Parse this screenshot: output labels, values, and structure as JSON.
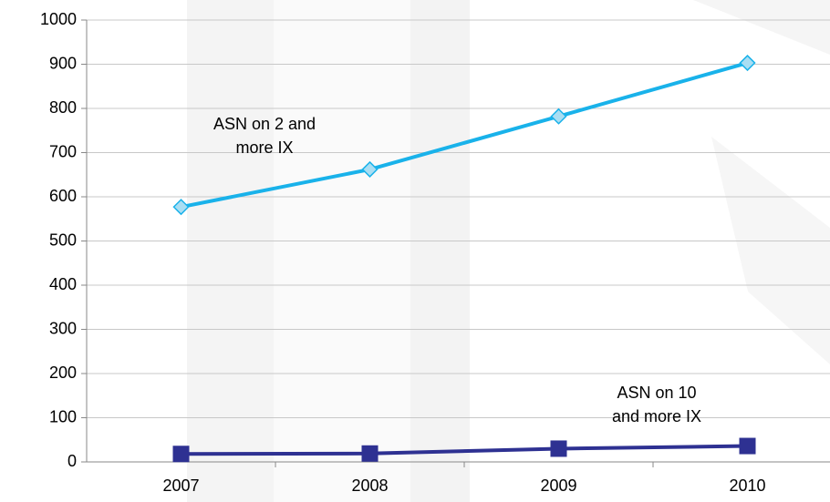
{
  "chart_data": {
    "type": "line",
    "categories": [
      "2007",
      "2008",
      "2009",
      "2010"
    ],
    "series": [
      {
        "name": "ASN on 2 and more IX",
        "color": "#19b2ea",
        "marker": "diamond",
        "values": [
          577,
          662,
          782,
          903
        ]
      },
      {
        "name": "ASN on 10 and more IX",
        "color": "#2e3192",
        "marker": "square",
        "values": [
          18,
          19,
          30,
          36
        ]
      }
    ],
    "ylim": [
      0,
      1000
    ],
    "yticks": [
      0,
      100,
      200,
      300,
      400,
      500,
      600,
      700,
      800,
      900,
      1000
    ],
    "grid": true
  }
}
